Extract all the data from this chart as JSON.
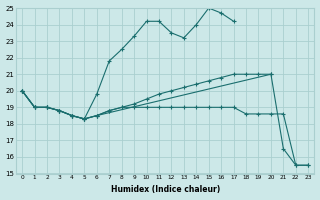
{
  "xlabel": "Humidex (Indice chaleur)",
  "background_color": "#cce8e8",
  "grid_color": "#aacfcf",
  "line_color": "#1a6e6e",
  "xlim": [
    -0.5,
    23.5
  ],
  "ylim": [
    15,
    25
  ],
  "xtick_labels": [
    "0",
    "1",
    "2",
    "3",
    "4",
    "5",
    "6",
    "7",
    "8",
    "9",
    "10",
    "11",
    "12",
    "13",
    "14",
    "15",
    "16",
    "17",
    "18",
    "19",
    "20",
    "21",
    "22",
    "23"
  ],
  "ytick_values": [
    15,
    16,
    17,
    18,
    19,
    20,
    21,
    22,
    23,
    24,
    25
  ],
  "lines": [
    {
      "x": [
        0,
        1,
        2,
        3,
        4,
        5,
        6,
        7,
        8,
        9,
        10,
        11,
        12,
        13,
        14,
        15,
        16,
        17
      ],
      "y": [
        20.0,
        19.0,
        19.0,
        18.8,
        18.5,
        18.3,
        19.8,
        21.8,
        22.5,
        23.3,
        24.2,
        24.2,
        23.5,
        23.2,
        24.0,
        25.0,
        24.7,
        24.2
      ]
    },
    {
      "x": [
        0,
        1,
        2,
        3,
        4,
        5,
        6,
        7,
        8,
        9,
        10,
        11,
        12,
        13,
        14,
        15,
        16,
        17,
        18,
        19,
        20
      ],
      "y": [
        20.0,
        19.0,
        19.0,
        18.8,
        18.5,
        18.3,
        18.5,
        18.8,
        19.0,
        19.2,
        19.5,
        19.8,
        20.0,
        20.2,
        20.4,
        20.6,
        20.8,
        21.0,
        21.0,
        21.0,
        21.0
      ]
    },
    {
      "x": [
        0,
        1,
        2,
        3,
        4,
        5,
        6,
        7,
        8,
        9,
        10,
        11,
        12,
        13,
        14,
        15,
        16,
        17,
        18,
        19,
        20,
        21,
        22,
        23
      ],
      "y": [
        20.0,
        19.0,
        19.0,
        18.8,
        18.5,
        18.3,
        18.5,
        18.8,
        19.0,
        19.0,
        19.0,
        19.0,
        19.0,
        19.0,
        19.0,
        19.0,
        19.0,
        19.0,
        18.6,
        18.6,
        18.6,
        18.6,
        15.5,
        15.5
      ]
    },
    {
      "x": [
        0,
        1,
        2,
        3,
        4,
        5,
        6,
        20,
        21,
        22,
        23
      ],
      "y": [
        20.0,
        19.0,
        19.0,
        18.8,
        18.5,
        18.3,
        18.5,
        21.0,
        16.5,
        15.5,
        15.5
      ]
    }
  ]
}
